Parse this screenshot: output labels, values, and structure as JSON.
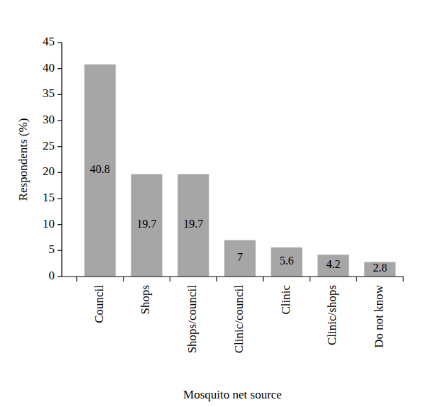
{
  "chart_data": {
    "type": "bar",
    "x_label": "Mosquito net source",
    "y_label": "Respondents (%)",
    "categories": [
      "Council",
      "Shops",
      "Shops/council",
      "Clinic/council",
      "Clinic",
      "Clinic/shops",
      "Do not know"
    ],
    "values": [
      40.8,
      19.7,
      19.7,
      7,
      5.6,
      4.2,
      2.8
    ],
    "color": "#a6a6a6",
    "ylim": [
      0,
      45
    ],
    "yticks": [
      0,
      5,
      10,
      15,
      20,
      25,
      30,
      35,
      40,
      45
    ],
    "grid": false,
    "data_labels": true
  }
}
